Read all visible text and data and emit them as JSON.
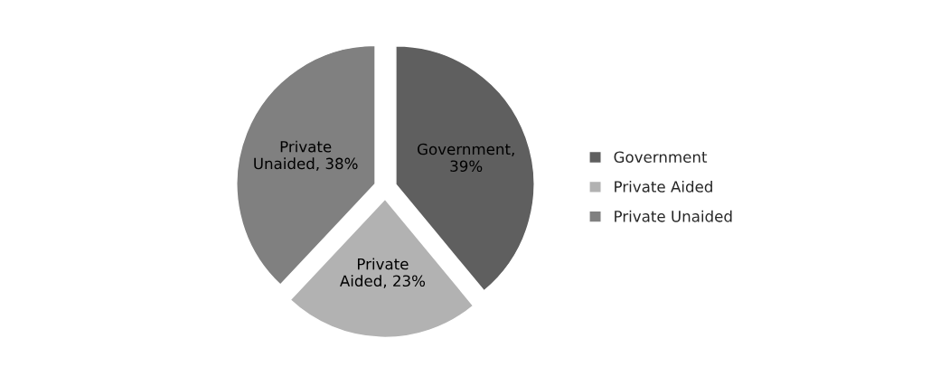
{
  "chart_data": {
    "type": "pie",
    "categories": [
      "Government",
      "Private Aided",
      "Private Unaided"
    ],
    "values": [
      39,
      23,
      38
    ],
    "colors": [
      "#5f5f5f",
      "#b2b2b2",
      "#808080"
    ],
    "value_labels": [
      "Government,\n39%",
      "Private\nAided, 23%",
      "Private\nUnaided, 38%"
    ],
    "legend": "right"
  }
}
